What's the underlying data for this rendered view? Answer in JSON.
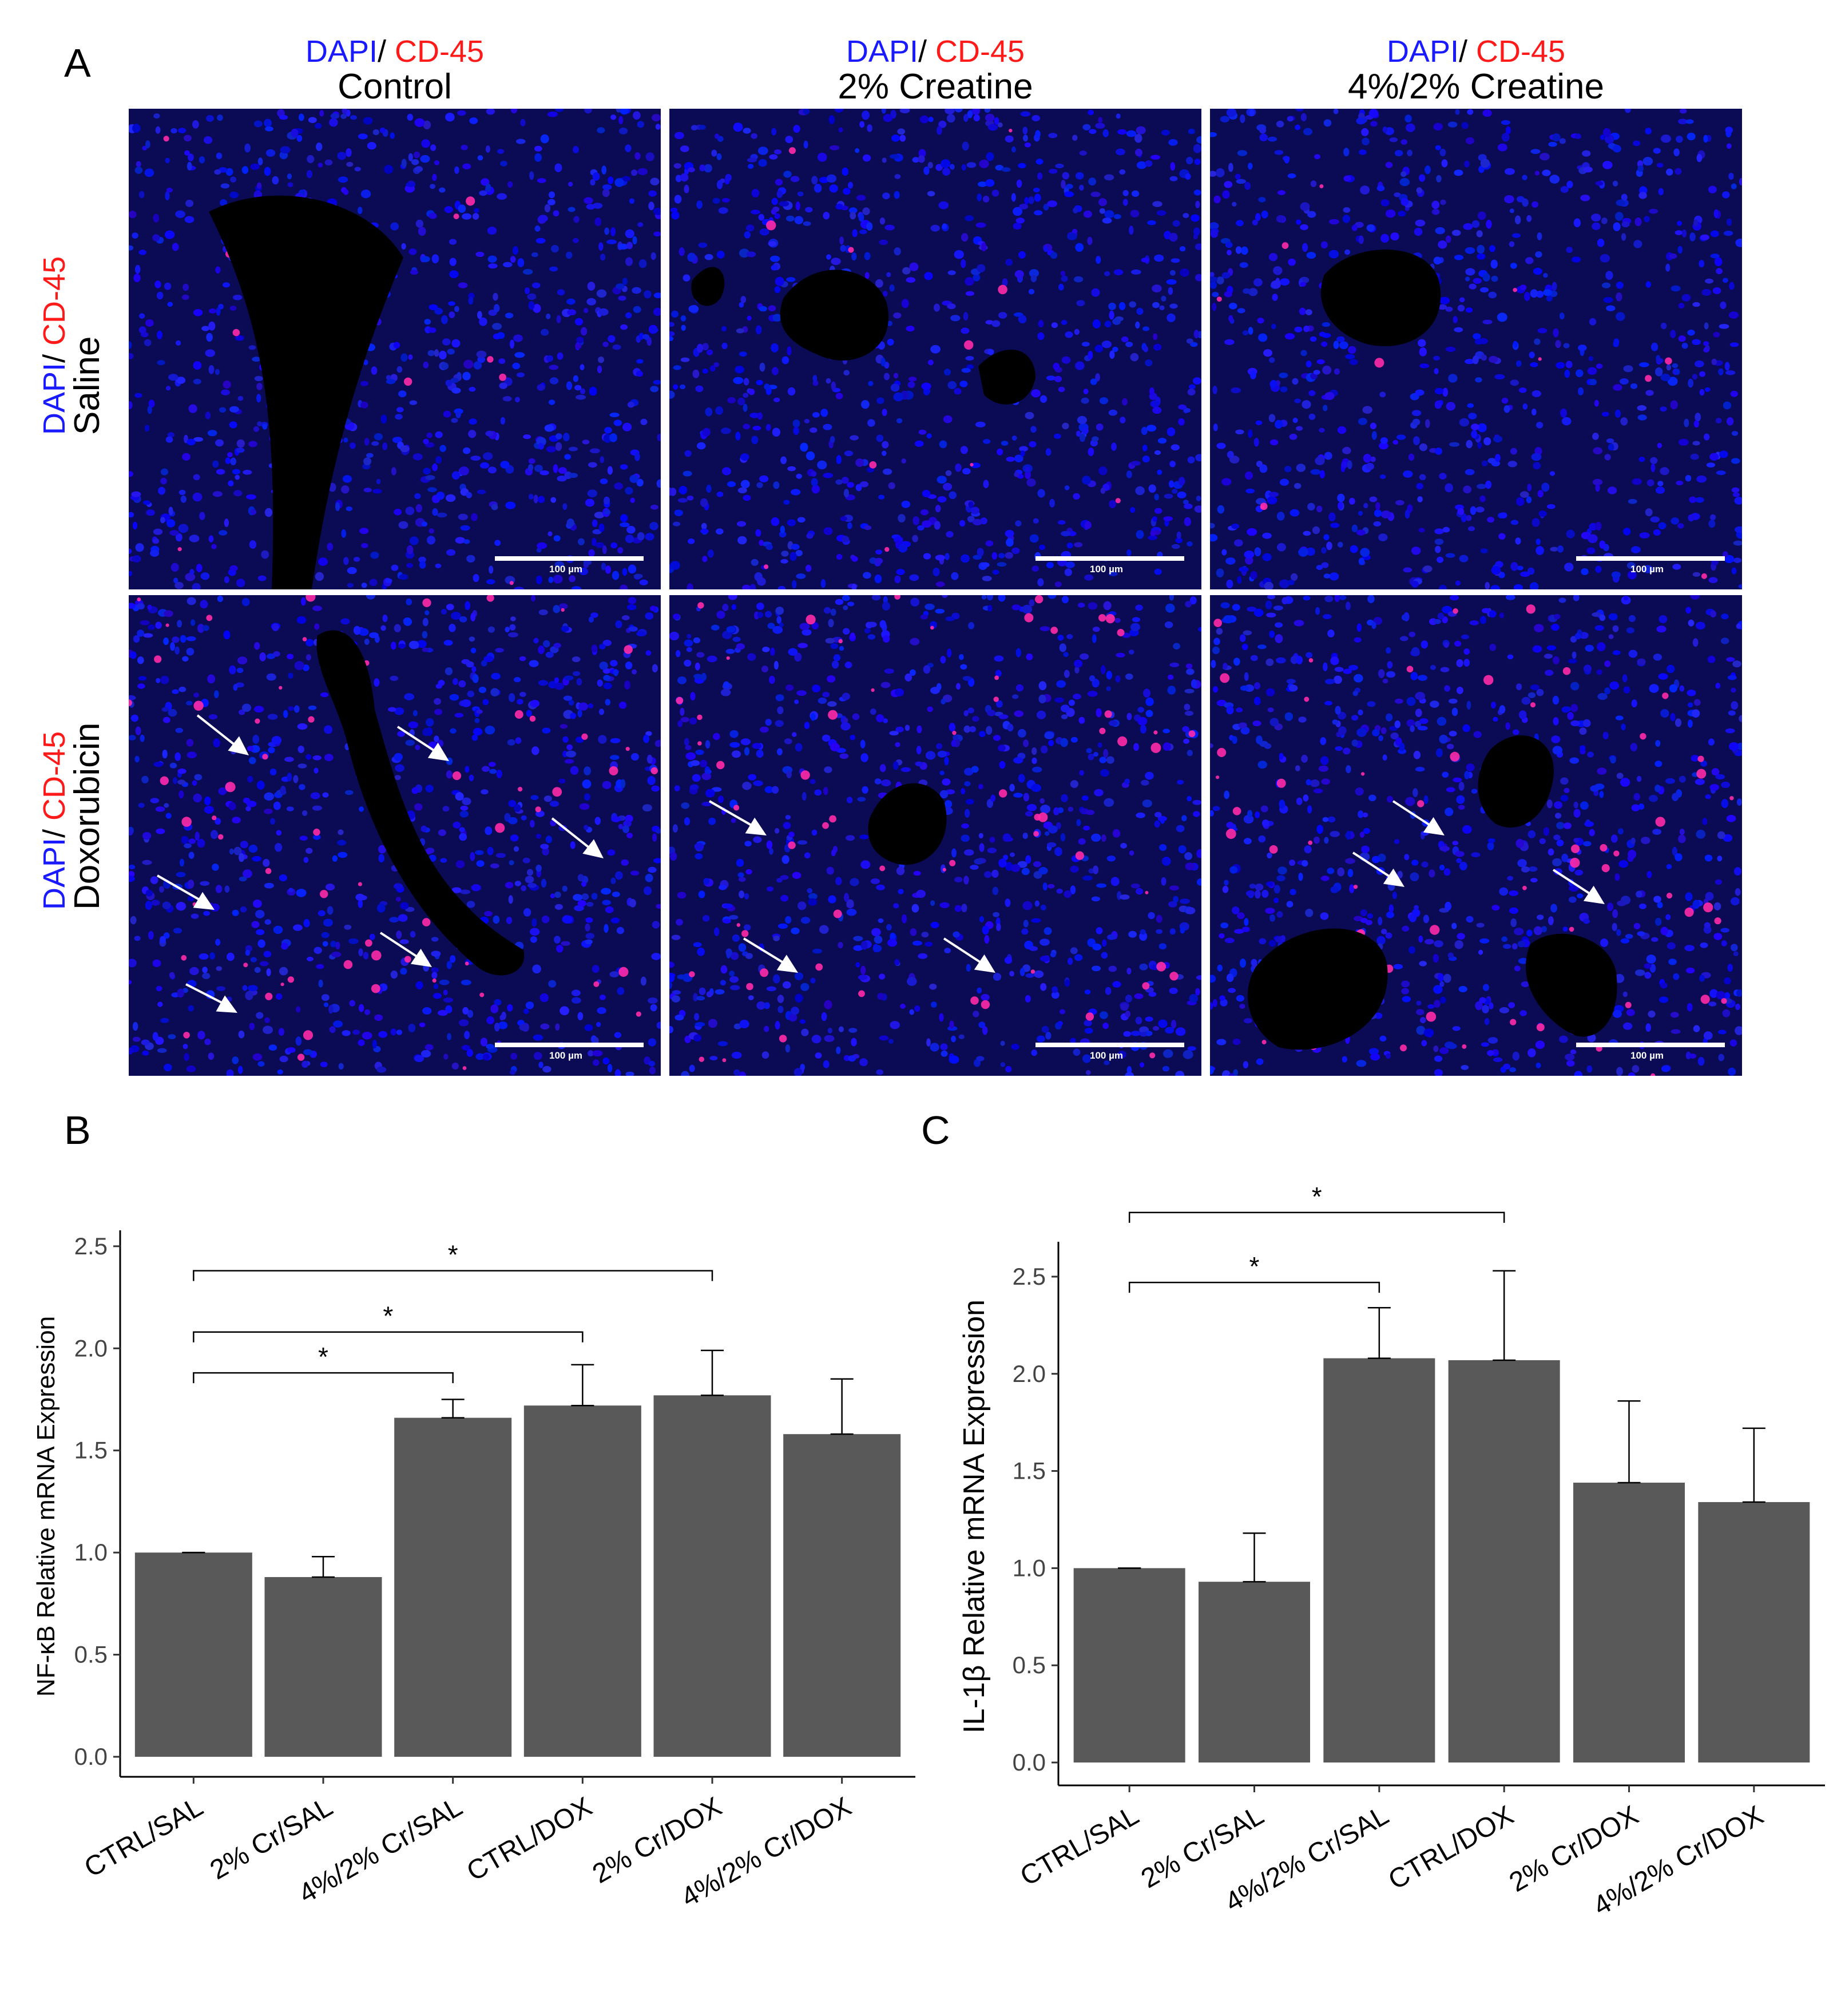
{
  "panel_a": {
    "letter": "A",
    "columns": [
      {
        "stain_dapi": "DAPI",
        "stain_sep": "/ ",
        "stain_cd": "CD-45",
        "condition": "Control"
      },
      {
        "stain_dapi": "DAPI",
        "stain_sep": "/ ",
        "stain_cd": "CD-45",
        "condition": "2% Creatine"
      },
      {
        "stain_dapi": "DAPI",
        "stain_sep": "/ ",
        "stain_cd": "CD-45",
        "condition": "4%/2% Creatine"
      }
    ],
    "rows": [
      {
        "stain_dapi": "DAPI",
        "stain_sep": "/ ",
        "stain_cd": "CD-45",
        "condition": "Saline"
      },
      {
        "stain_dapi": "DAPI",
        "stain_sep": "/ ",
        "stain_cd": "CD-45",
        "condition": "Doxorubicin"
      }
    ],
    "scale_label": "100 µm",
    "colors": {
      "dapi": "#1a1aff",
      "cd45": "#ff1a1a",
      "background": "#05053a"
    }
  },
  "panel_b": {
    "letter": "B"
  },
  "panel_c": {
    "letter": "C"
  },
  "chart_data": [
    {
      "type": "bar",
      "panel": "B",
      "ylabel": "NF-κB Relative mRNA Expression",
      "categories": [
        "CTRL/SAL",
        "2% Cr/SAL",
        "4%/2% Cr/SAL",
        "CTRL/DOX",
        "2% Cr/DOX",
        "4%/2% Cr/DOX"
      ],
      "values": [
        1.0,
        0.88,
        1.66,
        1.72,
        1.77,
        1.58
      ],
      "error_upper": [
        1.0,
        0.98,
        1.75,
        1.92,
        1.99,
        1.85
      ],
      "ylim": [
        0,
        2.55
      ],
      "yticks": [
        "0.0",
        "0.5",
        "1.0",
        "1.5",
        "2.0",
        "2.5"
      ],
      "ytick_values": [
        0,
        0.5,
        1.0,
        1.5,
        2.0,
        2.5
      ],
      "bar_color": "#595959",
      "significance": [
        {
          "from": 0,
          "to": 2,
          "label": "*",
          "level": 1.88
        },
        {
          "from": 0,
          "to": 3,
          "label": "*",
          "level": 2.08
        },
        {
          "from": 0,
          "to": 4,
          "label": "*",
          "level": 2.38
        }
      ]
    },
    {
      "type": "bar",
      "panel": "C",
      "ylabel": "IL-1β Relative mRNA Expression",
      "categories": [
        "CTRL/SAL",
        "2% Cr/SAL",
        "4%/2% Cr/SAL",
        "CTRL/DOX",
        "2% Cr/DOX",
        "4%/2% Cr/DOX"
      ],
      "values": [
        1.0,
        0.93,
        2.08,
        2.07,
        1.44,
        1.34
      ],
      "error_upper": [
        1.0,
        1.18,
        2.34,
        2.53,
        1.86,
        1.72
      ],
      "ylim": [
        0,
        2.65
      ],
      "yticks": [
        "0.0",
        "0.5",
        "1.0",
        "1.5",
        "2.0",
        "2.5"
      ],
      "ytick_values": [
        0,
        0.5,
        1.0,
        1.5,
        2.0,
        2.5
      ],
      "bar_color": "#595959",
      "significance": [
        {
          "from": 0,
          "to": 2,
          "label": "*",
          "level": 2.47
        },
        {
          "from": 0,
          "to": 3,
          "label": "*",
          "level": 2.83
        }
      ]
    }
  ]
}
